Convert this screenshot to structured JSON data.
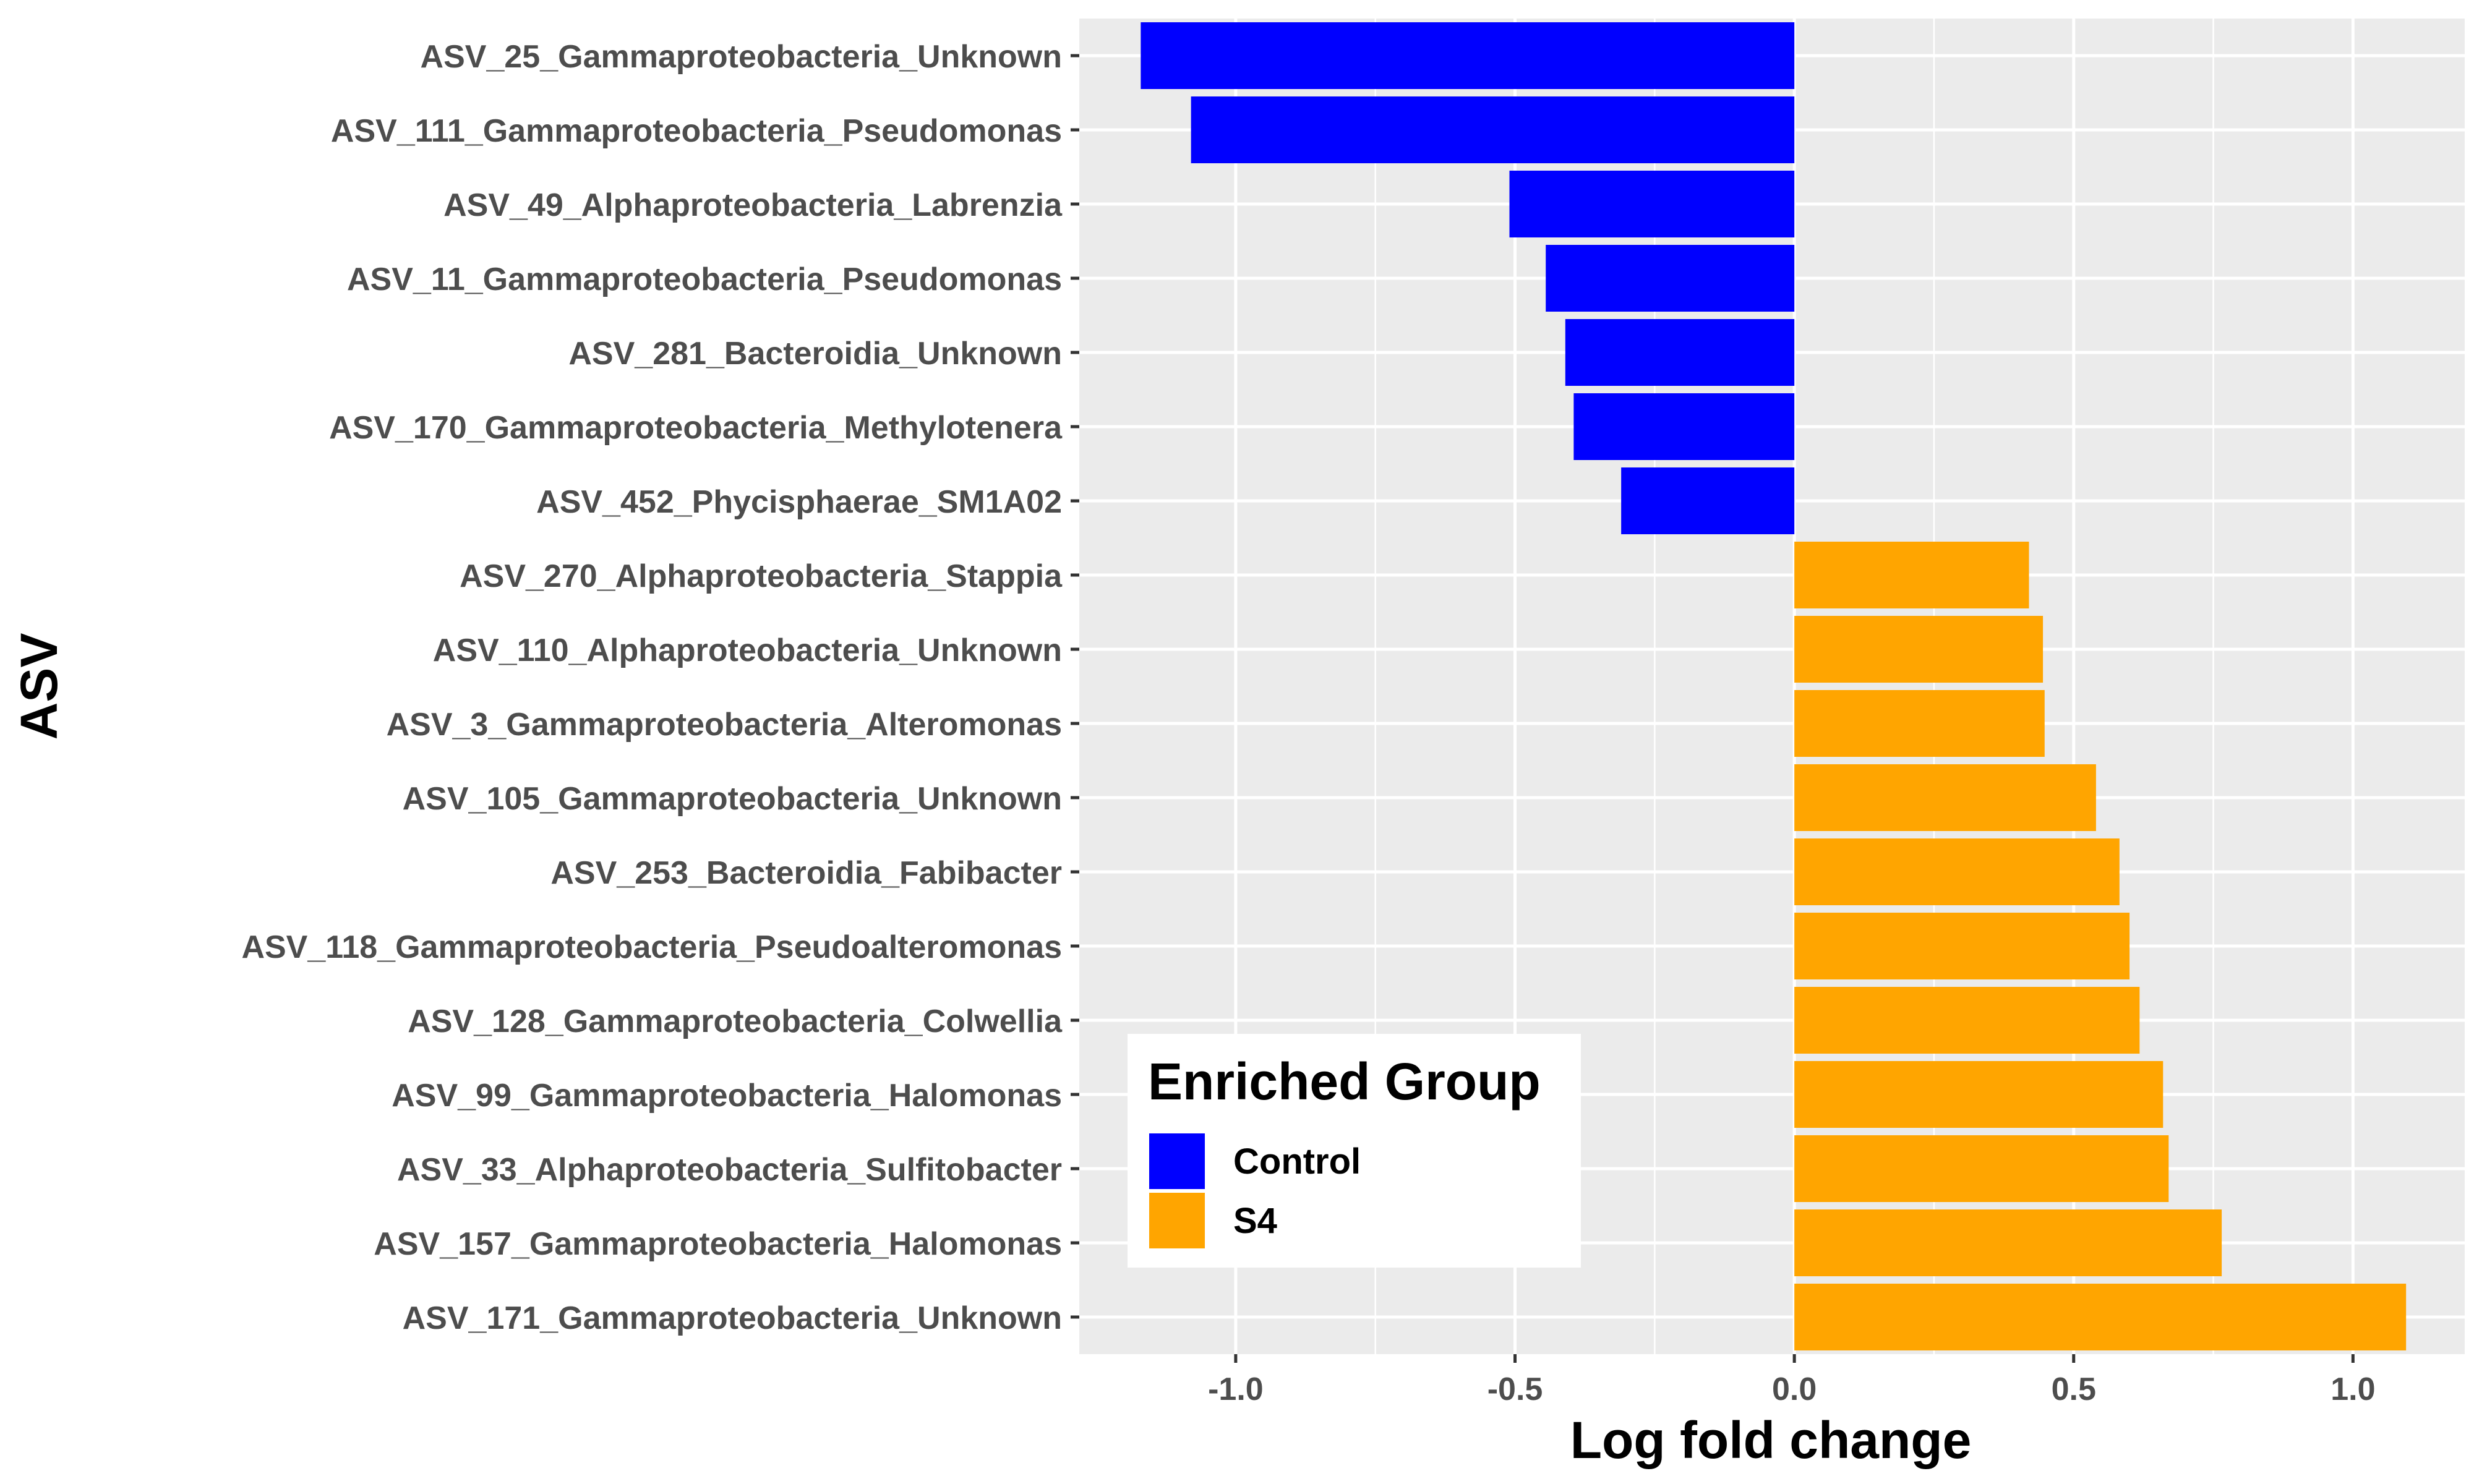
{
  "chart_data": {
    "type": "bar",
    "orientation": "horizontal",
    "xlabel": "Log fold change",
    "ylabel": "ASV",
    "xlim": [
      -1.28,
      1.2
    ],
    "xticks": [
      -1.0,
      -0.5,
      0.0,
      0.5,
      1.0
    ],
    "xtick_labels": [
      "-1.0",
      "-0.5",
      "0.0",
      "0.5",
      "1.0"
    ],
    "grid": true,
    "legend": {
      "title": "Enriched Group",
      "placement": "bottom-left inside",
      "entries": [
        {
          "label": "Control",
          "color": "#0000ff"
        },
        {
          "label": "S4",
          "color": "#ffa500"
        }
      ]
    },
    "categories": [
      "ASV_25_Gammaproteobacteria_Unknown",
      "ASV_111_Gammaproteobacteria_Pseudomonas",
      "ASV_49_Alphaproteobacteria_Labrenzia",
      "ASV_11_Gammaproteobacteria_Pseudomonas",
      "ASV_281_Bacteroidia_Unknown",
      "ASV_170_Gammaproteobacteria_Methylotenera",
      "ASV_452_Phycisphaerae_SM1A02",
      "ASV_270_Alphaproteobacteria_Stappia",
      "ASV_110_Alphaproteobacteria_Unknown",
      "ASV_3_Gammaproteobacteria_Alteromonas",
      "ASV_105_Gammaproteobacteria_Unknown",
      "ASV_253_Bacteroidia_Fabibacter",
      "ASV_118_Gammaproteobacteria_Pseudoalteromonas",
      "ASV_128_Gammaproteobacteria_Colwellia",
      "ASV_99_Gammaproteobacteria_Halomonas",
      "ASV_33_Alphaproteobacteria_Sulfitobacter",
      "ASV_157_Gammaproteobacteria_Halomonas",
      "ASV_171_Gammaproteobacteria_Unknown"
    ],
    "values": [
      -1.17,
      -1.08,
      -0.51,
      -0.445,
      -0.41,
      -0.395,
      -0.31,
      0.42,
      0.445,
      0.448,
      0.54,
      0.582,
      0.6,
      0.618,
      0.66,
      0.67,
      0.765,
      1.095
    ],
    "groups": [
      "Control",
      "Control",
      "Control",
      "Control",
      "Control",
      "Control",
      "Control",
      "S4",
      "S4",
      "S4",
      "S4",
      "S4",
      "S4",
      "S4",
      "S4",
      "S4",
      "S4",
      "S4"
    ]
  }
}
